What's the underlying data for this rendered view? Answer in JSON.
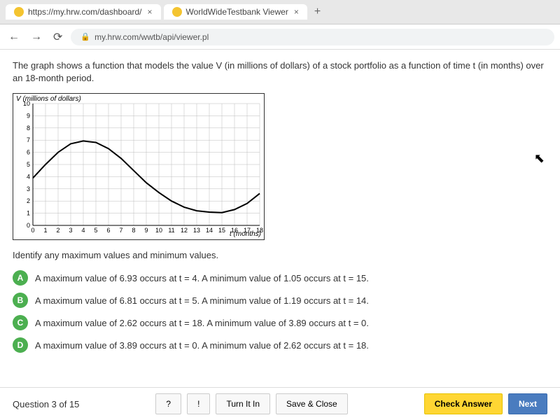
{
  "browser": {
    "tabs": [
      {
        "favicon_color": "#f4c430",
        "title": "https://my.hrw.com/dashboard/"
      },
      {
        "favicon_color": "#f4c430",
        "title": "WorldWideTestbank Viewer"
      }
    ],
    "nav": {
      "back": "←",
      "forward": "→",
      "reload": "⟳",
      "lock": "🔒",
      "url": "my.hrw.com/wwtb/api/viewer.pl"
    }
  },
  "question": {
    "stem": "The graph shows a function that models the value V (in millions of dollars) of a stock portfolio as a function of time t (in months) over an 18-month period.",
    "instruction": "Identify any maximum values and minimum values.",
    "options": [
      {
        "letter": "A",
        "text": "A maximum value of 6.93 occurs at t = 4. A minimum value of 1.05 occurs at t = 15."
      },
      {
        "letter": "B",
        "text": "A maximum value of 6.81 occurs at t = 5. A minimum value of 1.19 occurs at t = 14."
      },
      {
        "letter": "C",
        "text": "A maximum value of 2.62 occurs at t = 18. A minimum value of 3.89 occurs at t = 0."
      },
      {
        "letter": "D",
        "text": "A maximum value of 3.89 occurs at t = 0. A minimum value of 2.62 occurs at t = 18."
      }
    ],
    "counter": "Question 3 of 15",
    "y_axis_label": "V (millions of dollars)",
    "x_axis_label": "t (months)"
  },
  "graph": {
    "type": "line",
    "xlim": [
      0,
      18
    ],
    "ylim": [
      0,
      10
    ],
    "xtick_step": 1,
    "ytick_step": 1,
    "grid_color": "#bbbbbb",
    "axis_color": "#000000",
    "curve_color": "#000000",
    "curve_width": 2,
    "background_color": "#ffffff",
    "tick_fontsize": 9,
    "points": [
      [
        0,
        3.89
      ],
      [
        1,
        5.0
      ],
      [
        2,
        6.0
      ],
      [
        3,
        6.7
      ],
      [
        4,
        6.93
      ],
      [
        5,
        6.81
      ],
      [
        6,
        6.3
      ],
      [
        7,
        5.5
      ],
      [
        8,
        4.5
      ],
      [
        9,
        3.5
      ],
      [
        10,
        2.7
      ],
      [
        11,
        2.0
      ],
      [
        12,
        1.5
      ],
      [
        13,
        1.2
      ],
      [
        14,
        1.09
      ],
      [
        15,
        1.05
      ],
      [
        16,
        1.3
      ],
      [
        17,
        1.8
      ],
      [
        18,
        2.62
      ]
    ]
  },
  "buttons": {
    "help": "?",
    "flag": "!",
    "turn_in": "Turn It In",
    "save_close": "Save & Close",
    "check": "Check Answer",
    "next": "Next"
  },
  "colors": {
    "option_badge": "#4caf50",
    "check_btn": "#ffd633",
    "next_btn": "#4a7cbf"
  }
}
